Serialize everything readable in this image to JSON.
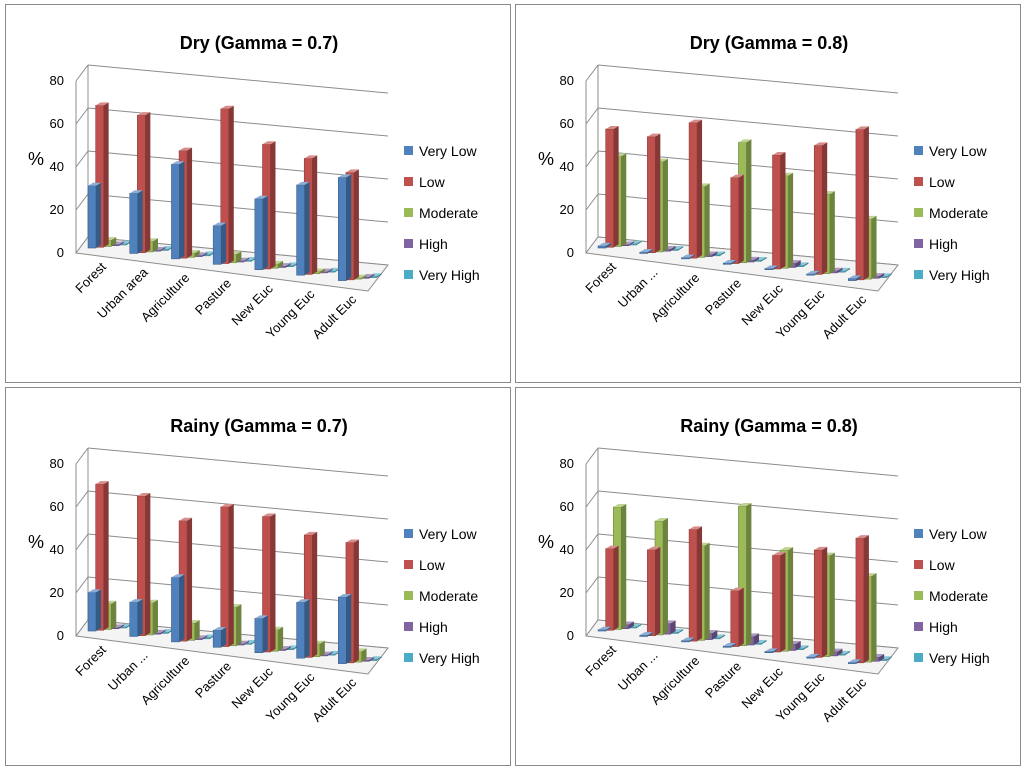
{
  "colors": {
    "Very Low": "#4f81bd",
    "Low": "#c0504d",
    "Moderate": "#9bbb59",
    "High": "#8064a2",
    "Very High": "#4bacc6"
  },
  "chart_data": [
    {
      "type": "bar",
      "title": "Dry (Gamma = 0.7)",
      "ylabel": "%",
      "xlabel": "",
      "ylim": [
        0,
        80
      ],
      "yticks": [
        "0",
        "20",
        "40",
        "60",
        "80"
      ],
      "categories": [
        "Forest",
        "Urban area",
        "Agriculture",
        "Pasture",
        "New Euc",
        "Young Euc",
        "Adult Euc"
      ],
      "series": [
        {
          "name": "Very Low",
          "values": [
            29,
            28,
            44,
            18,
            33,
            42,
            48
          ]
        },
        {
          "name": "Low",
          "values": [
            66,
            64,
            50,
            72,
            58,
            54,
            50
          ]
        },
        {
          "name": "Moderate",
          "values": [
            3,
            5,
            2,
            4,
            2,
            1,
            0
          ]
        },
        {
          "name": "High",
          "values": [
            0,
            0,
            0,
            0,
            0,
            0,
            0
          ]
        },
        {
          "name": "Very High",
          "values": [
            0,
            0,
            0,
            0,
            0,
            0,
            0
          ]
        }
      ]
    },
    {
      "type": "bar",
      "title": "Dry (Gamma = 0.8)",
      "ylabel": "%",
      "xlabel": "",
      "ylim": [
        0,
        80
      ],
      "yticks": [
        "0",
        "20",
        "40",
        "60",
        "80"
      ],
      "categories": [
        "Forest",
        "Urban ...",
        "Agriculture",
        "Pasture",
        "New Euc",
        "Young Euc",
        "Adult Euc"
      ],
      "series": [
        {
          "name": "Very Low",
          "values": [
            1,
            0,
            0,
            0,
            0,
            0,
            1
          ]
        },
        {
          "name": "Low",
          "values": [
            55,
            54,
            63,
            40,
            53,
            60,
            70
          ]
        },
        {
          "name": "Moderate",
          "values": [
            42,
            42,
            33,
            56,
            43,
            37,
            28
          ]
        },
        {
          "name": "High",
          "values": [
            0,
            1,
            1,
            1,
            2,
            1,
            1
          ]
        },
        {
          "name": "Very High",
          "values": [
            0,
            0,
            0,
            0,
            0,
            0,
            0
          ]
        }
      ]
    },
    {
      "type": "bar",
      "title": "Rainy (Gamma = 0.7)",
      "ylabel": "%",
      "xlabel": "",
      "ylim": [
        0,
        80
      ],
      "yticks": [
        "0",
        "20",
        "40",
        "60",
        "80"
      ],
      "categories": [
        "Forest",
        "Urban ...",
        "Agriculture",
        "Pasture",
        "New Euc",
        "Young Euc",
        "Adult Euc"
      ],
      "series": [
        {
          "name": "Very Low",
          "values": [
            18,
            16,
            30,
            8,
            16,
            26,
            31
          ]
        },
        {
          "name": "Low",
          "values": [
            68,
            65,
            56,
            65,
            63,
            57,
            56
          ]
        },
        {
          "name": "Moderate",
          "values": [
            12,
            15,
            8,
            18,
            10,
            6,
            5
          ]
        },
        {
          "name": "High",
          "values": [
            0,
            0,
            0,
            0,
            0,
            0,
            0
          ]
        },
        {
          "name": "Very High",
          "values": [
            0,
            0,
            0,
            0,
            0,
            0,
            0
          ]
        }
      ]
    },
    {
      "type": "bar",
      "title": "Rainy (Gamma = 0.8)",
      "ylabel": "%",
      "xlabel": "",
      "ylim": [
        0,
        80
      ],
      "yticks": [
        "0",
        "20",
        "40",
        "60",
        "80"
      ],
      "categories": [
        "Forest",
        "Urban ...",
        "Agriculture",
        "Pasture",
        "New Euc",
        "Young Euc",
        "Adult Euc"
      ],
      "series": [
        {
          "name": "Very Low",
          "values": [
            0,
            0,
            0,
            0,
            0,
            0,
            0
          ]
        },
        {
          "name": "Low",
          "values": [
            38,
            40,
            52,
            26,
            45,
            50,
            58
          ]
        },
        {
          "name": "Moderate",
          "values": [
            57,
            53,
            44,
            65,
            47,
            47,
            40
          ]
        },
        {
          "name": "High",
          "values": [
            2,
            5,
            3,
            4,
            3,
            2,
            2
          ]
        },
        {
          "name": "Very High",
          "values": [
            0,
            0,
            0,
            0,
            0,
            0,
            0
          ]
        }
      ]
    }
  ]
}
